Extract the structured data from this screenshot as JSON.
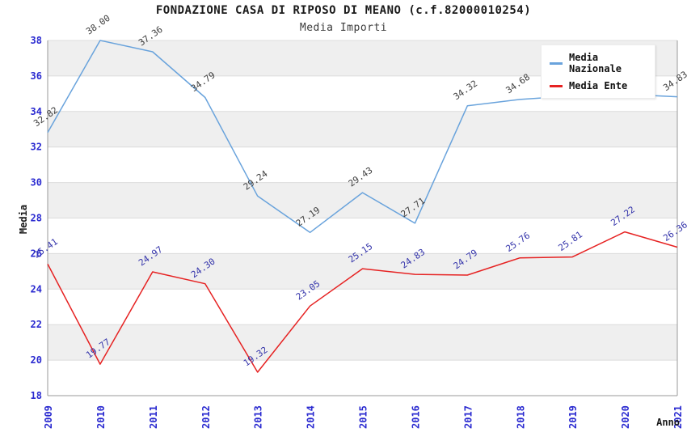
{
  "chart_data": {
    "type": "line",
    "title": "FONDAZIONE CASA DI RIPOSO DI MEANO (c.f.82000010254)",
    "subtitle": "Media Importi",
    "xlabel": "Anno",
    "ylabel": "Media",
    "x": [
      "2009",
      "2010",
      "2011",
      "2012",
      "2013",
      "2014",
      "2015",
      "2016",
      "2017",
      "2018",
      "2019",
      "2020",
      "2021"
    ],
    "ylim": [
      18,
      38
    ],
    "ytick_step": 2,
    "grid": "alternating horizontal gray bands every 2 units",
    "legend_position": "top-right",
    "point_labels_shown": true,
    "series": [
      {
        "name": "Media Nazionale",
        "color": "#69a3dc",
        "label_color": "#3d3d3d",
        "values": [
          32.82,
          38.0,
          37.36,
          34.79,
          29.24,
          27.19,
          29.43,
          27.71,
          34.32,
          34.68,
          34.88,
          34.97,
          34.83
        ]
      },
      {
        "name": "Media Ente",
        "color": "#e62222",
        "label_color": "#3333aa",
        "values": [
          25.41,
          19.77,
          24.97,
          24.3,
          19.32,
          23.05,
          25.15,
          24.83,
          24.79,
          25.76,
          25.81,
          27.22,
          26.36
        ]
      }
    ]
  },
  "colors": {
    "band_gray": "#efefef",
    "gridline": "#dcdcdc",
    "axis_line": "#9a9a9a",
    "tick_label_blue": "#2a2ad0"
  }
}
